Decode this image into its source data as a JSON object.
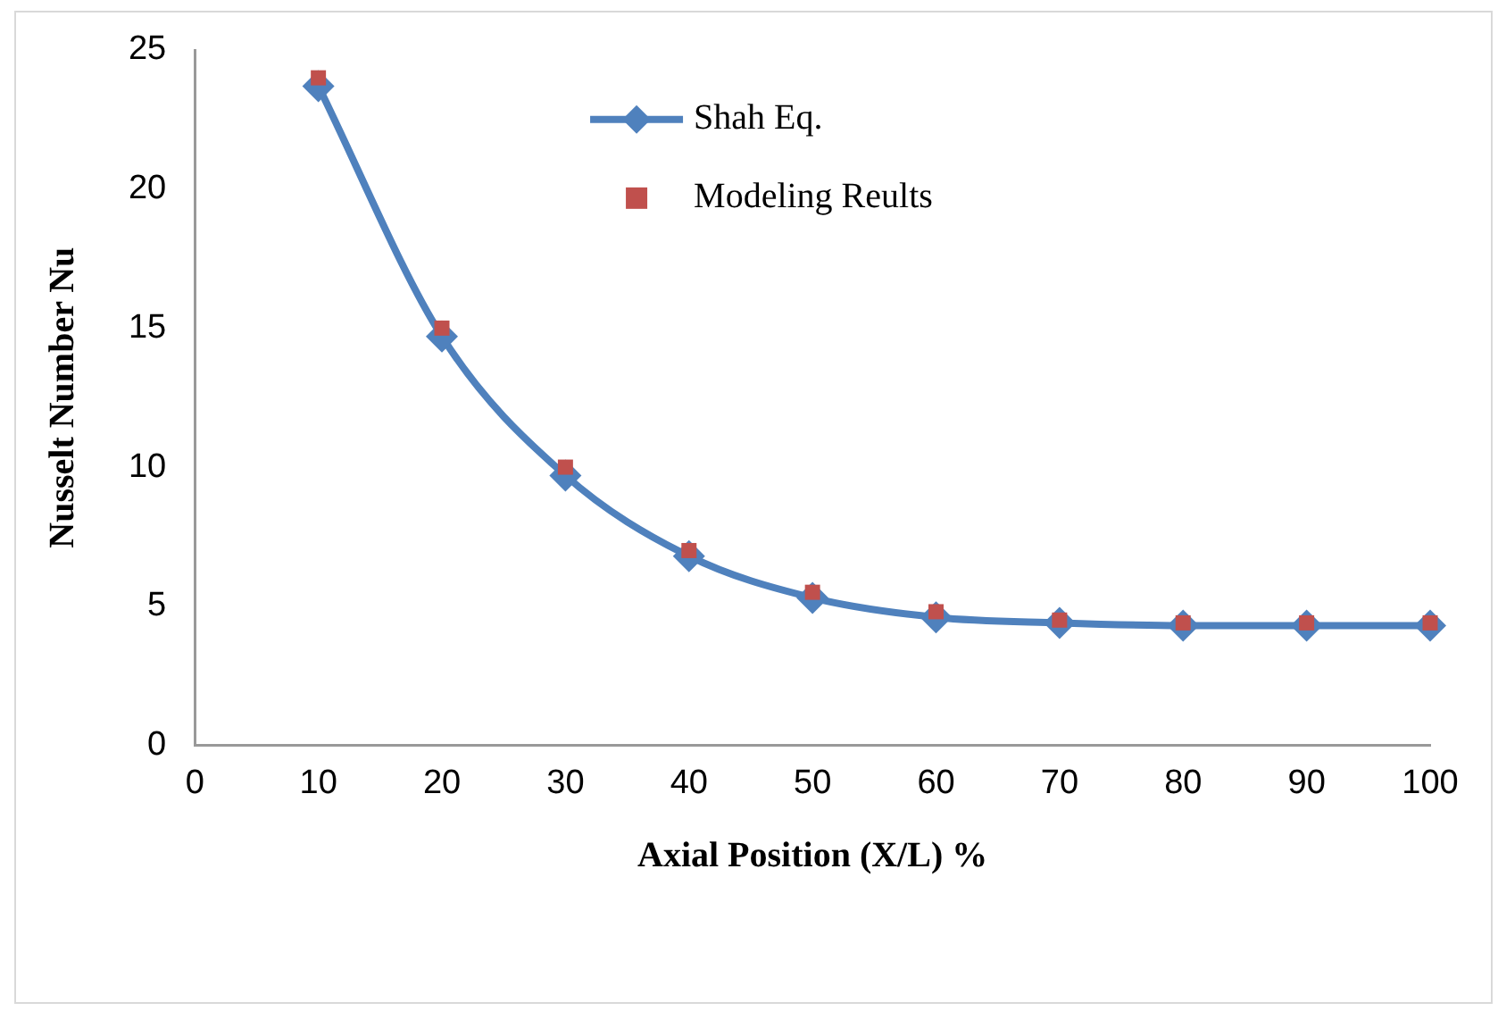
{
  "chart_data": {
    "type": "line",
    "xlabel": "Axial Position (X/L) %",
    "ylabel": "Nusselt Number Nu",
    "x": [
      10,
      20,
      30,
      40,
      50,
      60,
      70,
      80,
      90,
      100
    ],
    "series": [
      {
        "name": "Shah Eq.",
        "color": "#4f81bd",
        "marker": "diamond",
        "line_style": "solid",
        "values": [
          23.7,
          14.7,
          9.7,
          6.8,
          5.3,
          4.6,
          4.4,
          4.3,
          4.3,
          4.3
        ]
      },
      {
        "name": "Modeling Reults",
        "type": "scatter",
        "color": "#c0504d",
        "marker": "square",
        "values": [
          24.0,
          15.0,
          10.0,
          7.0,
          5.5,
          4.8,
          4.5,
          4.4,
          4.4,
          4.4
        ]
      }
    ],
    "xlim": [
      0,
      100
    ],
    "xticks": [
      0,
      10,
      20,
      30,
      40,
      50,
      60,
      70,
      80,
      90,
      100
    ],
    "ylim": [
      0,
      25
    ],
    "yticks": [
      0,
      5,
      10,
      15,
      20,
      25
    ],
    "grid": false,
    "legend": "top"
  }
}
